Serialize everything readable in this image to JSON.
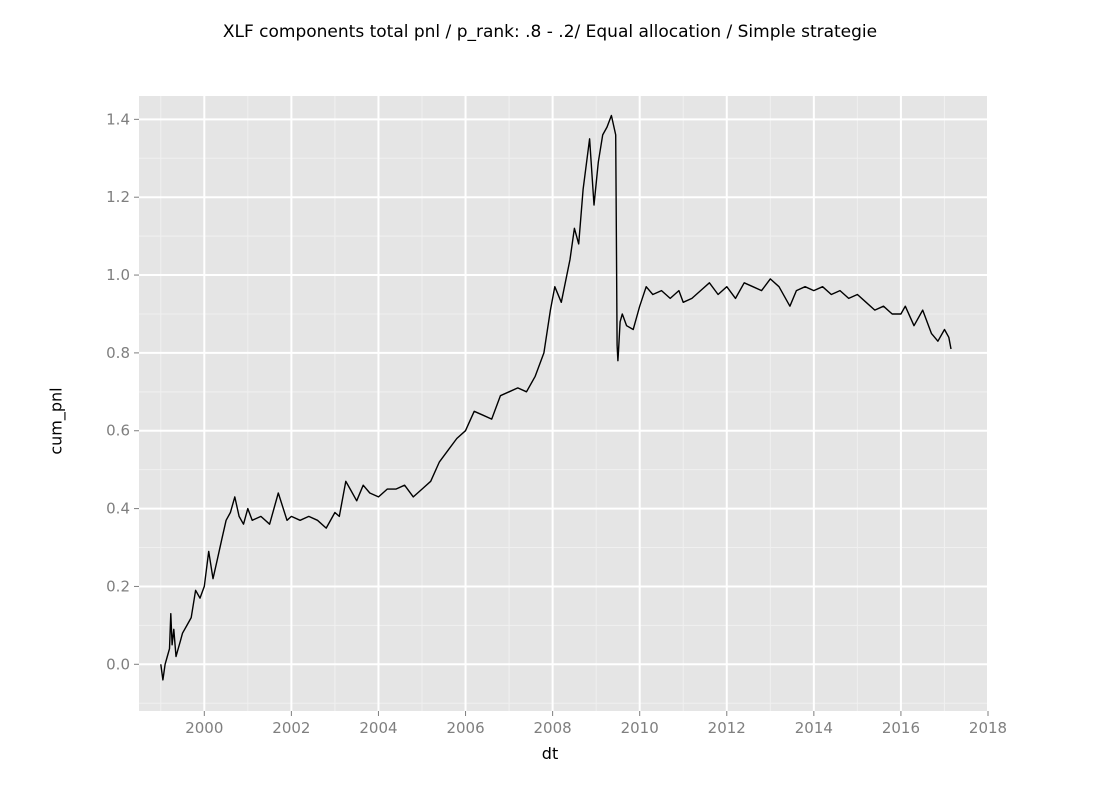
{
  "chart_data": {
    "type": "line",
    "title": "XLF components total pnl / p_rank: .8 - .2/ Equal allocation / Simple strategie",
    "xlabel": "dt",
    "ylabel": "cum_pnl",
    "xlim": [
      1998.5,
      2018.0
    ],
    "ylim": [
      -0.12,
      1.46
    ],
    "x_ticks": [
      2000,
      2002,
      2004,
      2006,
      2008,
      2010,
      2012,
      2014,
      2016,
      2018
    ],
    "x_tick_labels": [
      "2000",
      "2002",
      "2004",
      "2006",
      "2008",
      "2010",
      "2012",
      "2014",
      "2016",
      "2018"
    ],
    "y_ticks": [
      0.0,
      0.2,
      0.4,
      0.6,
      0.8,
      1.0,
      1.2,
      1.4
    ],
    "y_tick_labels": [
      "0.0",
      "0.2",
      "0.4",
      "0.6",
      "0.8",
      "1.0",
      "1.2",
      "1.4"
    ],
    "grid": true,
    "colors": {
      "panel": "#e5e5e5",
      "grid_major": "#ffffff",
      "grid_minor": "#f0f0f0",
      "line": "#000000",
      "tick": "#7f7f7f"
    },
    "series": [
      {
        "x": [
          1999.0,
          1999.05,
          1999.1,
          1999.15,
          1999.2,
          1999.23,
          1999.26,
          1999.3,
          1999.35,
          1999.4,
          1999.45,
          1999.5,
          1999.6,
          1999.7,
          1999.8,
          1999.9,
          2000.0,
          2000.1,
          2000.2,
          2000.3,
          2000.4,
          2000.5,
          2000.6,
          2000.7,
          2000.8,
          2000.9,
          2001.0,
          2001.1,
          2001.3,
          2001.5,
          2001.7,
          2001.9,
          2002.0,
          2002.2,
          2002.4,
          2002.6,
          2002.8,
          2003.0,
          2003.1,
          2003.25,
          2003.35,
          2003.5,
          2003.65,
          2003.8,
          2004.0,
          2004.2,
          2004.4,
          2004.6,
          2004.8,
          2005.0,
          2005.2,
          2005.4,
          2005.6,
          2005.8,
          2006.0,
          2006.2,
          2006.4,
          2006.6,
          2006.8,
          2007.0,
          2007.2,
          2007.4,
          2007.6,
          2007.8,
          2007.95,
          2008.05,
          2008.2,
          2008.4,
          2008.5,
          2008.6,
          2008.7,
          2008.85,
          2008.95,
          2009.05,
          2009.15,
          2009.25,
          2009.35,
          2009.45,
          2009.48,
          2009.5,
          2009.51,
          2009.55,
          2009.6,
          2009.7,
          2009.85,
          2010.0,
          2010.15,
          2010.3,
          2010.5,
          2010.7,
          2010.9,
          2011.0,
          2011.2,
          2011.4,
          2011.6,
          2011.8,
          2012.0,
          2012.2,
          2012.4,
          2012.6,
          2012.8,
          2013.0,
          2013.2,
          2013.45,
          2013.6,
          2013.8,
          2014.0,
          2014.2,
          2014.4,
          2014.6,
          2014.8,
          2015.0,
          2015.2,
          2015.4,
          2015.6,
          2015.8,
          2016.0,
          2016.1,
          2016.3,
          2016.5,
          2016.7,
          2016.85,
          2017.0,
          2017.1,
          2017.15
        ],
        "y": [
          0.0,
          -0.04,
          0.0,
          0.02,
          0.04,
          0.13,
          0.05,
          0.09,
          0.02,
          0.04,
          0.06,
          0.08,
          0.1,
          0.12,
          0.19,
          0.17,
          0.2,
          0.29,
          0.22,
          0.27,
          0.32,
          0.37,
          0.39,
          0.43,
          0.38,
          0.36,
          0.4,
          0.37,
          0.38,
          0.36,
          0.44,
          0.37,
          0.38,
          0.37,
          0.38,
          0.37,
          0.35,
          0.39,
          0.38,
          0.47,
          0.45,
          0.42,
          0.46,
          0.44,
          0.43,
          0.45,
          0.45,
          0.46,
          0.43,
          0.45,
          0.47,
          0.52,
          0.55,
          0.58,
          0.6,
          0.65,
          0.64,
          0.63,
          0.69,
          0.7,
          0.71,
          0.7,
          0.74,
          0.8,
          0.91,
          0.97,
          0.93,
          1.04,
          1.12,
          1.08,
          1.22,
          1.35,
          1.18,
          1.29,
          1.36,
          1.38,
          1.41,
          1.36,
          0.82,
          0.78,
          0.8,
          0.88,
          0.9,
          0.87,
          0.86,
          0.92,
          0.97,
          0.95,
          0.96,
          0.94,
          0.96,
          0.93,
          0.94,
          0.96,
          0.98,
          0.95,
          0.97,
          0.94,
          0.98,
          0.97,
          0.96,
          0.99,
          0.97,
          0.92,
          0.96,
          0.97,
          0.96,
          0.97,
          0.95,
          0.96,
          0.94,
          0.95,
          0.93,
          0.91,
          0.92,
          0.9,
          0.9,
          0.92,
          0.87,
          0.91,
          0.85,
          0.83,
          0.86,
          0.84,
          0.81
        ]
      }
    ]
  }
}
